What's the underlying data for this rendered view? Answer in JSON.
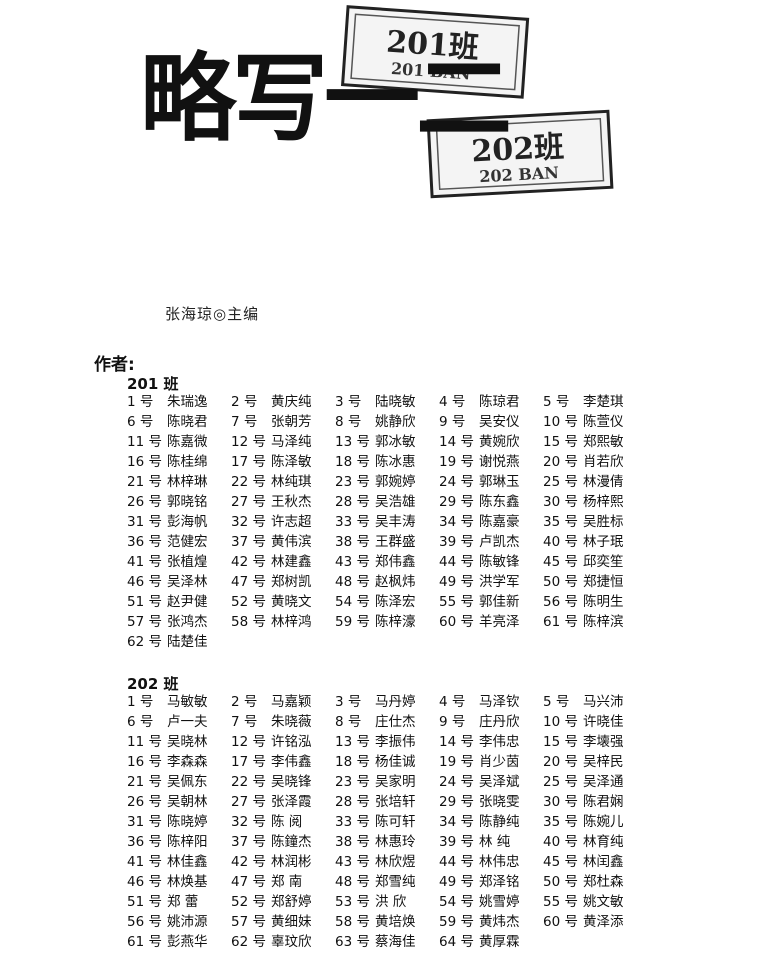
{
  "masthead": {
    "calligraphy": "略写一二",
    "stamp_201_main": "201班",
    "stamp_201_sub": "201 BAN",
    "stamp_202_main": "202班",
    "stamp_202_sub": "202 BAN"
  },
  "editor": "张海琼◎主编",
  "authors_label": "作者:",
  "classes": [
    {
      "title": "201 班",
      "students": [
        {
          "num": "1 号",
          "name": "朱瑞逸"
        },
        {
          "num": "2 号",
          "name": "黄庆纯"
        },
        {
          "num": "3 号",
          "name": "陆晓敏"
        },
        {
          "num": "4 号",
          "name": "陈琼君"
        },
        {
          "num": "5 号",
          "name": "李楚琪"
        },
        {
          "num": "6 号",
          "name": "陈晓君"
        },
        {
          "num": "7 号",
          "name": "张朝芳"
        },
        {
          "num": "8 号",
          "name": "姚静欣"
        },
        {
          "num": "9 号",
          "name": "吴安仪"
        },
        {
          "num": "10 号",
          "name": "陈萱仪"
        },
        {
          "num": "11 号",
          "name": "陈嘉微"
        },
        {
          "num": "12 号",
          "name": "马泽纯"
        },
        {
          "num": "13 号",
          "name": "郭冰敏"
        },
        {
          "num": "14 号",
          "name": "黄婉欣"
        },
        {
          "num": "15 号",
          "name": "郑熙敏"
        },
        {
          "num": "16 号",
          "name": "陈桂绵"
        },
        {
          "num": "17 号",
          "name": "陈泽敏"
        },
        {
          "num": "18 号",
          "name": "陈冰惠"
        },
        {
          "num": "19 号",
          "name": "谢悦燕"
        },
        {
          "num": "20 号",
          "name": "肖若欣"
        },
        {
          "num": "21 号",
          "name": "林梓琳"
        },
        {
          "num": "22 号",
          "name": "林纯琪"
        },
        {
          "num": "23 号",
          "name": "郭婉婷"
        },
        {
          "num": "24 号",
          "name": "郭琳玉"
        },
        {
          "num": "25 号",
          "name": "林漫倩"
        },
        {
          "num": "26 号",
          "name": "郭晓铭"
        },
        {
          "num": "27 号",
          "name": "王秋杰"
        },
        {
          "num": "28 号",
          "name": "吴浩雄"
        },
        {
          "num": "29 号",
          "name": "陈东鑫"
        },
        {
          "num": "30 号",
          "name": "杨梓熙"
        },
        {
          "num": "31 号",
          "name": "彭海帆"
        },
        {
          "num": "32 号",
          "name": "许志超"
        },
        {
          "num": "33 号",
          "name": "吴丰涛"
        },
        {
          "num": "34 号",
          "name": "陈嘉豪"
        },
        {
          "num": "35 号",
          "name": "吴胜标"
        },
        {
          "num": "36 号",
          "name": "范健宏"
        },
        {
          "num": "37 号",
          "name": "黄伟滨"
        },
        {
          "num": "38 号",
          "name": "王群盛"
        },
        {
          "num": "39 号",
          "name": "卢凯杰"
        },
        {
          "num": "40 号",
          "name": "林子珉"
        },
        {
          "num": "41 号",
          "name": "张植煌"
        },
        {
          "num": "42 号",
          "name": "林建鑫"
        },
        {
          "num": "43 号",
          "name": "郑伟鑫"
        },
        {
          "num": "44 号",
          "name": "陈敏锋"
        },
        {
          "num": "45 号",
          "name": "邱奕笙"
        },
        {
          "num": "46 号",
          "name": "吴泽林"
        },
        {
          "num": "47 号",
          "name": "郑树凯"
        },
        {
          "num": "48 号",
          "name": "赵枫炜"
        },
        {
          "num": "49 号",
          "name": "洪学军"
        },
        {
          "num": "50 号",
          "name": "郑捷恒"
        },
        {
          "num": "51 号",
          "name": "赵尹健"
        },
        {
          "num": "52 号",
          "name": "黄晓文"
        },
        {
          "num": "54 号",
          "name": "陈泽宏"
        },
        {
          "num": "55 号",
          "name": "郭佳新"
        },
        {
          "num": "56 号",
          "name": "陈明生"
        },
        {
          "num": "57 号",
          "name": "张鸿杰"
        },
        {
          "num": "58 号",
          "name": "林梓鸿"
        },
        {
          "num": "59 号",
          "name": "陈梓濠"
        },
        {
          "num": "60 号",
          "name": "羊亮泽"
        },
        {
          "num": "61 号",
          "name": "陈梓滨"
        },
        {
          "num": "62 号",
          "name": "陆楚佳"
        }
      ]
    },
    {
      "title": "202 班",
      "students": [
        {
          "num": "1 号",
          "name": "马敏敏"
        },
        {
          "num": "2 号",
          "name": "马嘉颖"
        },
        {
          "num": "3 号",
          "name": "马丹婷"
        },
        {
          "num": "4 号",
          "name": "马泽钦"
        },
        {
          "num": "5 号",
          "name": "马兴沛"
        },
        {
          "num": "6 号",
          "name": "卢一夫"
        },
        {
          "num": "7 号",
          "name": "朱晓薇"
        },
        {
          "num": "8 号",
          "name": "庄仕杰"
        },
        {
          "num": "9 号",
          "name": "庄丹欣"
        },
        {
          "num": "10 号",
          "name": "许晓佳"
        },
        {
          "num": "11 号",
          "name": "吴晓林"
        },
        {
          "num": "12 号",
          "name": "许铭泓"
        },
        {
          "num": "13 号",
          "name": "李振伟"
        },
        {
          "num": "14 号",
          "name": "李伟忠"
        },
        {
          "num": "15 号",
          "name": "李壊强"
        },
        {
          "num": "16 号",
          "name": "李森森"
        },
        {
          "num": "17 号",
          "name": "李伟鑫"
        },
        {
          "num": "18 号",
          "name": "杨佳诚"
        },
        {
          "num": "19 号",
          "name": "肖少茵"
        },
        {
          "num": "20 号",
          "name": "吴梓民"
        },
        {
          "num": "21 号",
          "name": "吴佩东"
        },
        {
          "num": "22 号",
          "name": "吴晓锋"
        },
        {
          "num": "23 号",
          "name": "吴家明"
        },
        {
          "num": "24 号",
          "name": "吴泽斌"
        },
        {
          "num": "25 号",
          "name": "吴泽通"
        },
        {
          "num": "26 号",
          "name": "吴朝林"
        },
        {
          "num": "27 号",
          "name": "张泽霞"
        },
        {
          "num": "28 号",
          "name": "张培轩"
        },
        {
          "num": "29 号",
          "name": "张晓雯"
        },
        {
          "num": "30 号",
          "name": "陈君娴"
        },
        {
          "num": "31 号",
          "name": "陈晓婷"
        },
        {
          "num": "32 号",
          "name": "陈 阅"
        },
        {
          "num": "33 号",
          "name": "陈可轩"
        },
        {
          "num": "34 号",
          "name": "陈静纯"
        },
        {
          "num": "35 号",
          "name": "陈婉儿"
        },
        {
          "num": "36 号",
          "name": "陈梓阳"
        },
        {
          "num": "37 号",
          "name": "陈鐘杰"
        },
        {
          "num": "38 号",
          "name": "林惠玲"
        },
        {
          "num": "39 号",
          "name": "林 纯"
        },
        {
          "num": "40 号",
          "name": "林育纯"
        },
        {
          "num": "41 号",
          "name": "林佳鑫"
        },
        {
          "num": "42 号",
          "name": "林润彬"
        },
        {
          "num": "43 号",
          "name": "林欣煜"
        },
        {
          "num": "44 号",
          "name": "林伟忠"
        },
        {
          "num": "45 号",
          "name": "林闰鑫"
        },
        {
          "num": "46 号",
          "name": "林焕基"
        },
        {
          "num": "47 号",
          "name": "郑 南"
        },
        {
          "num": "48 号",
          "name": "郑雪纯"
        },
        {
          "num": "49 号",
          "name": "郑泽铭"
        },
        {
          "num": "50 号",
          "name": "郑杜森"
        },
        {
          "num": "51 号",
          "name": "郑 蕾"
        },
        {
          "num": "52 号",
          "name": "郑舒婷"
        },
        {
          "num": "53 号",
          "name": "洪 欣"
        },
        {
          "num": "54 号",
          "name": "姚雪婷"
        },
        {
          "num": "55 号",
          "name": "姚文敏"
        },
        {
          "num": "56 号",
          "name": "姚沛源"
        },
        {
          "num": "57 号",
          "name": "黄细妹"
        },
        {
          "num": "58 号",
          "name": "黄培焕"
        },
        {
          "num": "59 号",
          "name": "黄炜杰"
        },
        {
          "num": "60 号",
          "name": "黄泽添"
        },
        {
          "num": "61 号",
          "name": "彭燕华"
        },
        {
          "num": "62 号",
          "name": "辜玟欣"
        },
        {
          "num": "63 号",
          "name": "蔡海佳"
        },
        {
          "num": "64 号",
          "name": "黄厚霖"
        }
      ]
    }
  ]
}
